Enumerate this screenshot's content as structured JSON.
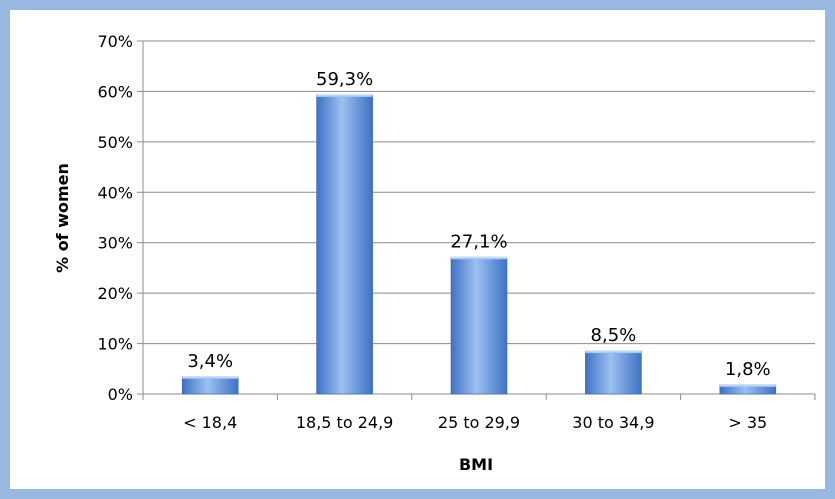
{
  "chart_data": {
    "type": "bar",
    "categories": [
      "< 18,4",
      "18,5 to 24,9",
      "25 to 29,9",
      "30 to 34,9",
      "> 35"
    ],
    "values": [
      3.4,
      59.3,
      27.1,
      8.5,
      1.8
    ],
    "data_labels": [
      "3,4%",
      "59,3%",
      "27,1%",
      "8,5%",
      "1,8%"
    ],
    "title": "",
    "xlabel": "BMI",
    "ylabel": "% of women",
    "ylim": [
      0,
      70
    ],
    "yticks": [
      "0%",
      "10%",
      "20%",
      "30%",
      "40%",
      "50%",
      "60%",
      "70%"
    ],
    "grid": true,
    "legend": "none",
    "bar_color": "#4a7fd0"
  }
}
